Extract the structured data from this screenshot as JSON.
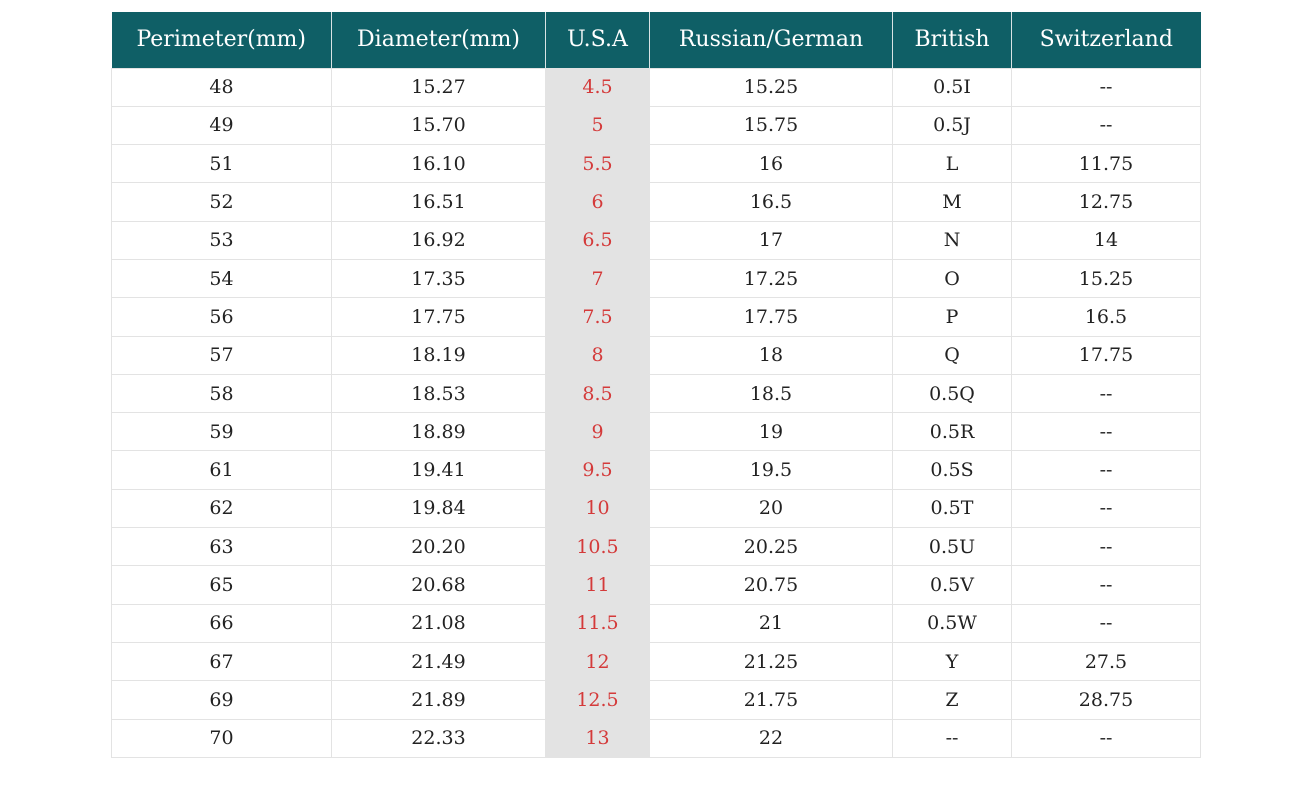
{
  "table": {
    "headers": [
      "Perimeter(mm)",
      "Diameter(mm)",
      "U.S.A",
      "Russian/German",
      "British",
      "Switzerland"
    ],
    "rows": [
      [
        "48",
        "15.27",
        "4.5",
        "15.25",
        "0.5I",
        "--"
      ],
      [
        "49",
        "15.70",
        "5",
        "15.75",
        "0.5J",
        "--"
      ],
      [
        "51",
        "16.10",
        "5.5",
        "16",
        "L",
        "11.75"
      ],
      [
        "52",
        "16.51",
        "6",
        "16.5",
        "M",
        "12.75"
      ],
      [
        "53",
        "16.92",
        "6.5",
        "17",
        "N",
        "14"
      ],
      [
        "54",
        "17.35",
        "7",
        "17.25",
        "O",
        "15.25"
      ],
      [
        "56",
        "17.75",
        "7.5",
        "17.75",
        "P",
        "16.5"
      ],
      [
        "57",
        "18.19",
        "8",
        "18",
        "Q",
        "17.75"
      ],
      [
        "58",
        "18.53",
        "8.5",
        "18.5",
        "0.5Q",
        "--"
      ],
      [
        "59",
        "18.89",
        "9",
        "19",
        "0.5R",
        "--"
      ],
      [
        "61",
        "19.41",
        "9.5",
        "19.5",
        "0.5S",
        "--"
      ],
      [
        "62",
        "19.84",
        "10",
        "20",
        "0.5T",
        "--"
      ],
      [
        "63",
        "20.20",
        "10.5",
        "20.25",
        "0.5U",
        "--"
      ],
      [
        "65",
        "20.68",
        "11",
        "20.75",
        "0.5V",
        "--"
      ],
      [
        "66",
        "21.08",
        "11.5",
        "21",
        "0.5W",
        "--"
      ],
      [
        "67",
        "21.49",
        "12",
        "21.25",
        "Y",
        "27.5"
      ],
      [
        "69",
        "21.89",
        "12.5",
        "21.75",
        "Z",
        "28.75"
      ],
      [
        "70",
        "22.33",
        "13",
        "22",
        "--",
        "--"
      ]
    ]
  },
  "colors": {
    "header_bg": "#0f5f66",
    "usa_text": "#d43a3a",
    "usa_column_bg": "#e3e3e3"
  }
}
